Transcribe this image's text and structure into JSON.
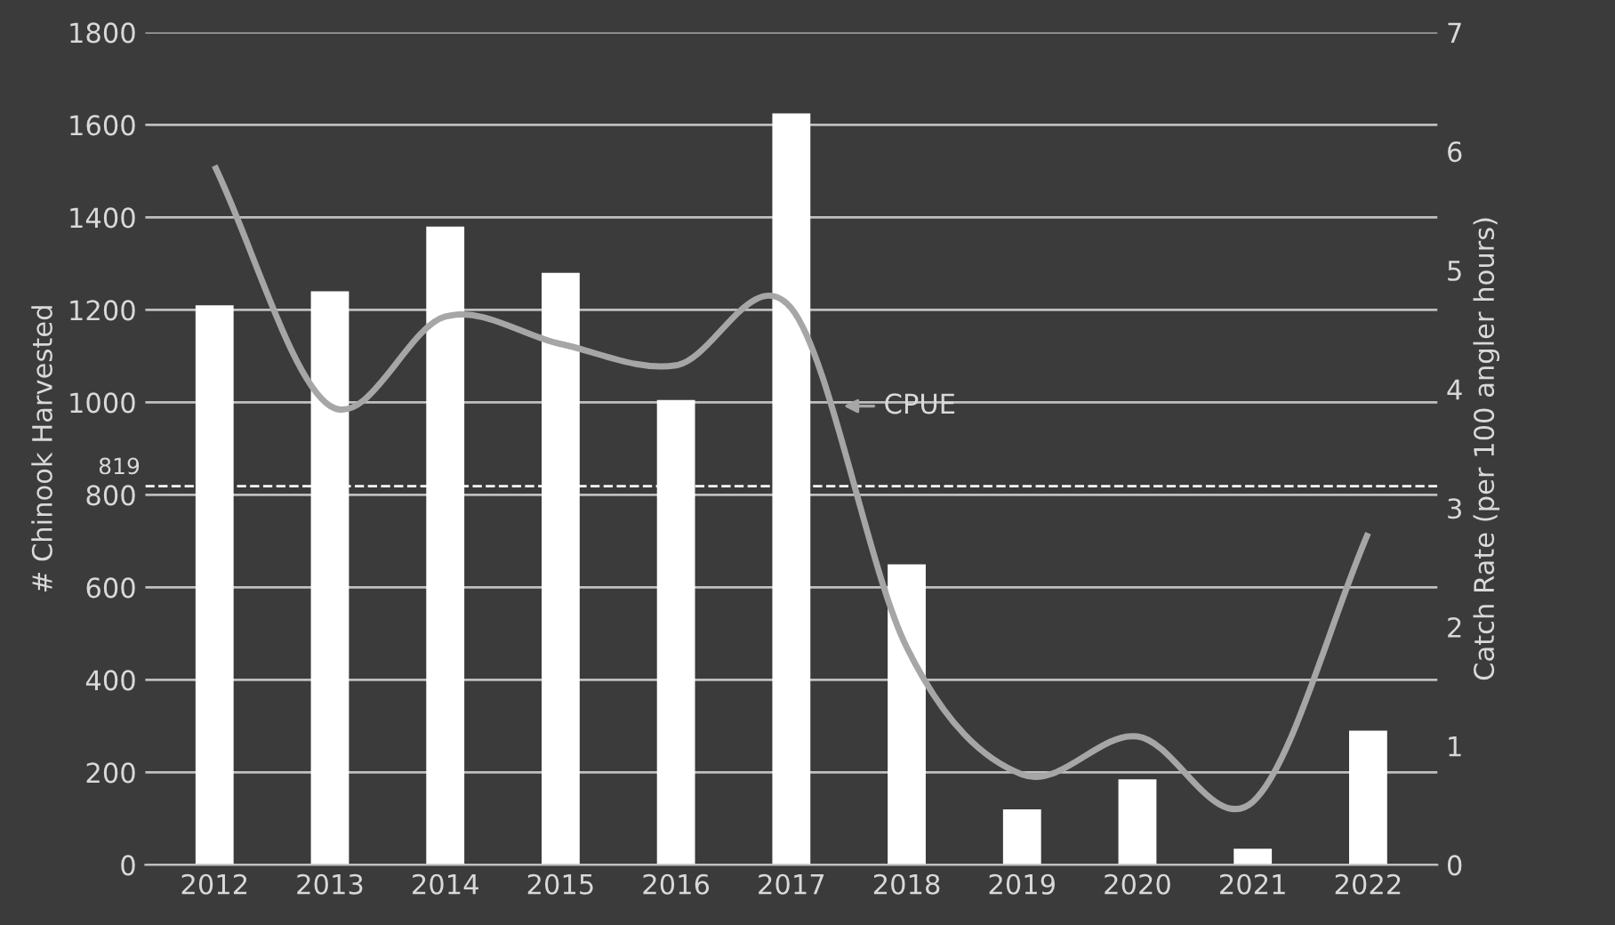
{
  "chart_data": {
    "type": "bar",
    "ylabel": "# Chinook Harvested",
    "y2label": "Catch Rate (per 100 angler hours)",
    "categories": [
      "2012",
      "2013",
      "2014",
      "2015",
      "2016",
      "2017",
      "2018",
      "2019",
      "2020",
      "2021",
      "2022"
    ],
    "series": [
      {
        "color": "#ffffff",
        "values": [
          1210,
          1240,
          1380,
          1280,
          1005,
          1625,
          650,
          120,
          185,
          35,
          290
        ]
      },
      {
        "type": "line",
        "axis": "y2",
        "color": "#a6a6a6",
        "values": [
          5.88,
          3.86,
          4.61,
          4.38,
          4.2,
          4.68,
          1.83,
          0.76,
          1.08,
          0.53,
          2.79
        ]
      }
    ],
    "annotations": [
      "CPUE"
    ],
    "ylim": [
      0,
      1800
    ],
    "yticks": [
      0,
      200,
      400,
      600,
      800,
      1000,
      1200,
      1400,
      1600,
      1800
    ],
    "y2lim": [
      0,
      7
    ],
    "y2ticks": [
      0,
      1,
      2,
      3,
      4,
      5,
      6,
      7
    ],
    "ref_lines": [
      {
        "axis": "y",
        "value": 819,
        "label": "819",
        "color": "#ffffff",
        "line_style": "dashed"
      }
    ],
    "grid": "y",
    "marker": "none",
    "line_style": "solid"
  }
}
